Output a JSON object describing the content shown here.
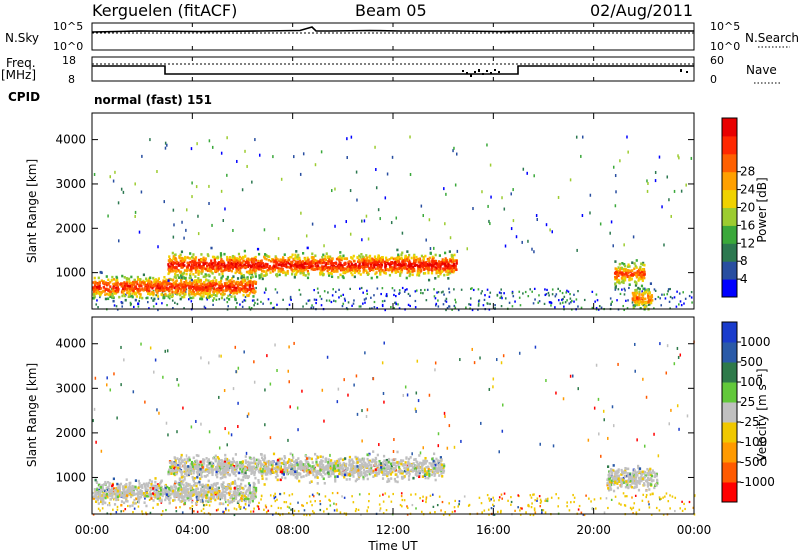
{
  "header": {
    "station": "Kerguelen (fitACF)",
    "beam": "Beam 05",
    "date": "02/Aug/2011"
  },
  "top_panels": {
    "nsky_label": "N.Sky",
    "nsky_ticks": [
      "10^5",
      "10^0"
    ],
    "nsearch_label": "N.Search",
    "nsearch_ticks": [
      "10^5",
      "10^0"
    ],
    "freq_label_1": "Freq.",
    "freq_label_2": "[MHz]",
    "freq_ticks": [
      "18",
      "8"
    ],
    "nave_label": "Nave",
    "nave_ticks": [
      "60",
      "0"
    ],
    "cpid_label": "CPID",
    "cpid_value": "normal (fast) 151"
  },
  "chart_data": [
    {
      "type": "heatmap",
      "name": "power",
      "xlabel": "Time UT",
      "ylabel": "Slant Range [km]",
      "xlim_hours": [
        0,
        24
      ],
      "ylim_km": [
        180,
        4600
      ],
      "x_ticks": [
        "00:00",
        "04:00",
        "08:00",
        "12:00",
        "16:00",
        "20:00",
        "00:00"
      ],
      "y_ticks": [
        1000,
        2000,
        3000,
        4000
      ],
      "colorbar_label": "Power [dB]",
      "colorbar_ticks": [
        "4",
        "8",
        "12",
        "16",
        "20",
        "24",
        "28"
      ],
      "colorbar_colors": [
        "#0000ff",
        "#284ea0",
        "#2c7850",
        "#3aa83a",
        "#9ccc30",
        "#f0d200",
        "#ffa000",
        "#ff6000",
        "#ff2800",
        "#e80000"
      ],
      "features": [
        {
          "t_start": 0.0,
          "t_end": 6.5,
          "range_km": 700,
          "level": 24
        },
        {
          "t_start": 3.0,
          "t_end": 14.5,
          "range_km": 1200,
          "level": 26
        },
        {
          "t_start": 20.8,
          "t_end": 22.0,
          "range_km": 1000,
          "level": 22
        },
        {
          "t_start": 21.5,
          "t_end": 22.3,
          "range_km": 450,
          "level": 20
        }
      ]
    },
    {
      "type": "heatmap",
      "name": "velocity",
      "xlabel": "Time UT",
      "ylabel": "Slant Range [km]",
      "xlim_hours": [
        0,
        24
      ],
      "ylim_km": [
        180,
        4600
      ],
      "x_ticks": [
        "00:00",
        "04:00",
        "08:00",
        "12:00",
        "16:00",
        "20:00",
        "00:00"
      ],
      "y_ticks": [
        1000,
        2000,
        3000,
        4000
      ],
      "colorbar_label": "Velocity [m s⁻¹]",
      "colorbar_ticks": [
        "1000",
        "500",
        "100",
        "25",
        "-25",
        "-100",
        "-500",
        "-1000"
      ],
      "colorbar_colors": [
        "#1a3ccc",
        "#2a5aa8",
        "#2e7a4a",
        "#62c83a",
        "#c0c0c0",
        "#f0c800",
        "#ff9a00",
        "#ff5a00",
        "#ff0000"
      ],
      "features": [
        {
          "t_start": 0.0,
          "t_end": 6.5,
          "range_km": 700,
          "velocity": 0
        },
        {
          "t_start": 3.0,
          "t_end": 14.0,
          "range_km": 1250,
          "velocity": 0
        },
        {
          "t_start": 20.5,
          "t_end": 22.5,
          "range_km": 1000,
          "velocity": 0
        }
      ]
    }
  ]
}
